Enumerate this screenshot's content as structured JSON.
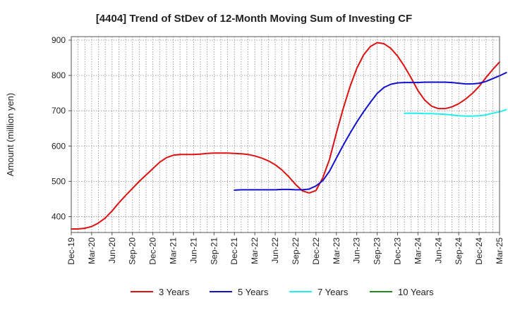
{
  "chart_data": {
    "type": "line",
    "title": "[4404]  Trend of StDev of 12-Month Moving Sum of Investing CF",
    "xlabel": "",
    "ylabel": "Amount (million yen)",
    "ylim": [
      355,
      910
    ],
    "yticks": [
      400,
      500,
      600,
      700,
      800,
      900
    ],
    "xticks": [
      "Dec-19",
      "Mar-20",
      "Jun-20",
      "Sep-20",
      "Dec-20",
      "Mar-21",
      "Jun-21",
      "Sep-21",
      "Dec-21",
      "Mar-22",
      "Jun-22",
      "Sep-22",
      "Dec-22",
      "Mar-23",
      "Jun-23",
      "Sep-23",
      "Dec-23",
      "Mar-24",
      "Jun-24",
      "Sep-24",
      "Dec-24",
      "Mar-25"
    ],
    "grid": true,
    "legend_position": "bottom",
    "series": [
      {
        "name": "3 Years",
        "color": "#dd1111",
        "points": [
          [
            "Dec-19",
            365
          ],
          [
            "Jan-20",
            365
          ],
          [
            "Feb-20",
            367
          ],
          [
            "Mar-20",
            372
          ],
          [
            "Apr-20",
            382
          ],
          [
            "May-20",
            396
          ],
          [
            "Jun-20",
            416
          ],
          [
            "Jul-20",
            439
          ],
          [
            "Aug-20",
            460
          ],
          [
            "Sep-20",
            480
          ],
          [
            "Oct-20",
            500
          ],
          [
            "Nov-20",
            518
          ],
          [
            "Dec-20",
            536
          ],
          [
            "Jan-21",
            554
          ],
          [
            "Feb-21",
            567
          ],
          [
            "Mar-21",
            574
          ],
          [
            "Apr-21",
            576
          ],
          [
            "May-21",
            576
          ],
          [
            "Jun-21",
            576
          ],
          [
            "Jul-21",
            577
          ],
          [
            "Aug-21",
            579
          ],
          [
            "Sep-21",
            580
          ],
          [
            "Oct-21",
            580
          ],
          [
            "Nov-21",
            580
          ],
          [
            "Dec-21",
            579
          ],
          [
            "Jan-22",
            578
          ],
          [
            "Feb-22",
            576
          ],
          [
            "Mar-22",
            572
          ],
          [
            "Apr-22",
            566
          ],
          [
            "May-22",
            558
          ],
          [
            "Jun-22",
            547
          ],
          [
            "Jul-22",
            532
          ],
          [
            "Aug-22",
            513
          ],
          [
            "Sep-22",
            491
          ],
          [
            "Oct-22",
            473
          ],
          [
            "Nov-22",
            467
          ],
          [
            "Dec-22",
            474
          ],
          [
            "Jan-23",
            510
          ],
          [
            "Feb-23",
            563
          ],
          [
            "Mar-23",
            637
          ],
          [
            "Apr-23",
            706
          ],
          [
            "May-23",
            768
          ],
          [
            "Jun-23",
            820
          ],
          [
            "Jul-23",
            858
          ],
          [
            "Aug-23",
            882
          ],
          [
            "Sep-23",
            893
          ],
          [
            "Oct-23",
            890
          ],
          [
            "Nov-23",
            877
          ],
          [
            "Dec-23",
            855
          ],
          [
            "Jan-24",
            826
          ],
          [
            "Feb-24",
            793
          ],
          [
            "Mar-24",
            757
          ],
          [
            "Apr-24",
            730
          ],
          [
            "May-24",
            713
          ],
          [
            "Jun-24",
            706
          ],
          [
            "Jul-24",
            706
          ],
          [
            "Aug-24",
            711
          ],
          [
            "Sep-24",
            720
          ],
          [
            "Oct-24",
            733
          ],
          [
            "Nov-24",
            749
          ],
          [
            "Dec-24",
            769
          ],
          [
            "Jan-25",
            794
          ],
          [
            "Feb-25",
            817
          ],
          [
            "Mar-25",
            838
          ]
        ]
      },
      {
        "name": "5 Years",
        "color": "#1111cc",
        "points": [
          [
            "Dec-21",
            475
          ],
          [
            "Jan-22",
            476
          ],
          [
            "Feb-22",
            476
          ],
          [
            "Mar-22",
            476
          ],
          [
            "Apr-22",
            476
          ],
          [
            "May-22",
            476
          ],
          [
            "Jun-22",
            476
          ],
          [
            "Jul-22",
            477
          ],
          [
            "Aug-22",
            477
          ],
          [
            "Sep-22",
            476
          ],
          [
            "Oct-22",
            476
          ],
          [
            "Nov-22",
            478
          ],
          [
            "Dec-22",
            487
          ],
          [
            "Jan-23",
            502
          ],
          [
            "Feb-23",
            529
          ],
          [
            "Mar-23",
            566
          ],
          [
            "Apr-23",
            602
          ],
          [
            "May-23",
            636
          ],
          [
            "Jun-23",
            668
          ],
          [
            "Jul-23",
            697
          ],
          [
            "Aug-23",
            724
          ],
          [
            "Sep-23",
            749
          ],
          [
            "Oct-23",
            766
          ],
          [
            "Nov-23",
            775
          ],
          [
            "Dec-23",
            779
          ],
          [
            "Jan-24",
            780
          ],
          [
            "Feb-24",
            780
          ],
          [
            "Mar-24",
            780
          ],
          [
            "Apr-24",
            781
          ],
          [
            "May-24",
            781
          ],
          [
            "Jun-24",
            781
          ],
          [
            "Jul-24",
            781
          ],
          [
            "Aug-24",
            780
          ],
          [
            "Sep-24",
            778
          ],
          [
            "Oct-24",
            776
          ],
          [
            "Nov-24",
            776
          ],
          [
            "Dec-24",
            778
          ],
          [
            "Jan-25",
            783
          ],
          [
            "Feb-25",
            791
          ],
          [
            "Mar-25",
            799
          ],
          [
            "Apr-25",
            808
          ]
        ]
      },
      {
        "name": "7 Years",
        "color": "#22eeee",
        "points": [
          [
            "Jan-24",
            693
          ],
          [
            "Feb-24",
            693
          ],
          [
            "Mar-24",
            693
          ],
          [
            "Apr-24",
            692
          ],
          [
            "May-24",
            692
          ],
          [
            "Jun-24",
            691
          ],
          [
            "Jul-24",
            690
          ],
          [
            "Aug-24",
            688
          ],
          [
            "Sep-24",
            686
          ],
          [
            "Oct-24",
            685
          ],
          [
            "Nov-24",
            685
          ],
          [
            "Dec-24",
            686
          ],
          [
            "Jan-25",
            688
          ],
          [
            "Feb-25",
            693
          ],
          [
            "Mar-25",
            697
          ],
          [
            "Apr-25",
            703
          ]
        ]
      },
      {
        "name": "10 Years",
        "color": "#228822",
        "points": []
      }
    ]
  }
}
